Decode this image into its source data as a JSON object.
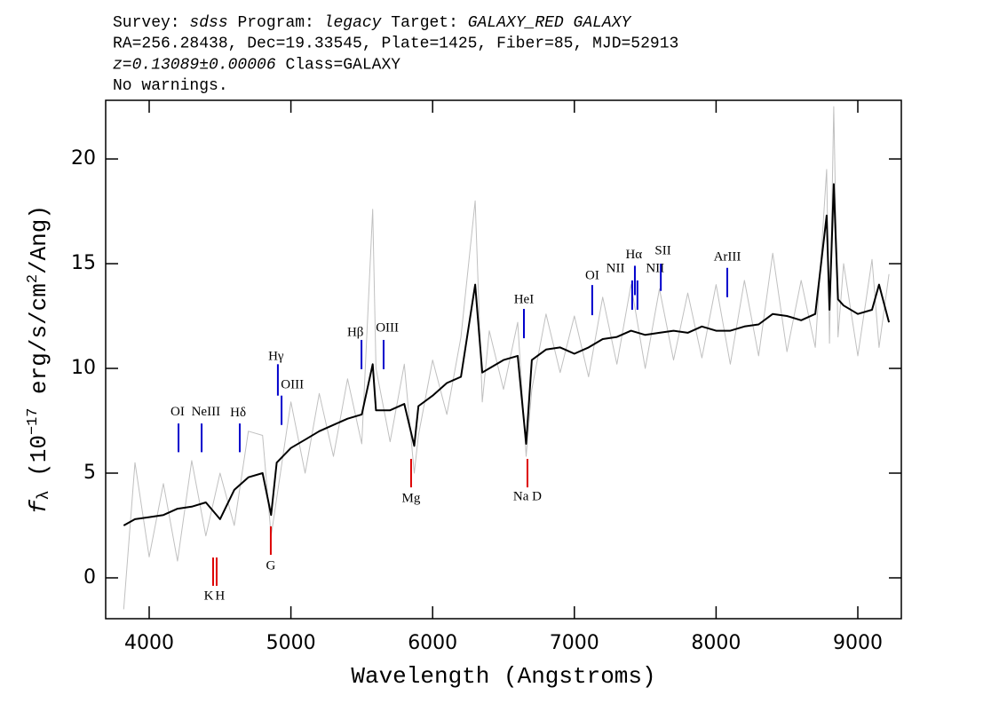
{
  "chart_data": {
    "type": "line",
    "header": [
      [
        {
          "text": "Survey: "
        },
        {
          "text": "sdss",
          "style": "italic"
        },
        {
          "text": " Program: "
        },
        {
          "text": "legacy",
          "style": "italic"
        },
        {
          "text": " Target: "
        },
        {
          "text": "GALAXY_RED GALAXY",
          "style": "italic"
        }
      ],
      [
        {
          "text": "RA=256.28438, Dec=19.33545, Plate=1425, Fiber=85, MJD=52913"
        }
      ],
      [
        {
          "text": "z=0.13089±0.00006",
          "style": "italic"
        },
        {
          "text": " Class=GALAXY"
        }
      ],
      [
        {
          "text": "No warnings."
        }
      ]
    ],
    "x_label": "Wavelength (Angstroms)",
    "y_label": [
      {
        "text": "f",
        "style": "italic"
      },
      {
        "text": "λ",
        "style": "sub"
      },
      {
        "text": " (10"
      },
      {
        "text": "−17",
        "style": "sup"
      },
      {
        "text": " erg/s/cm"
      },
      {
        "text": "2",
        "style": "sup"
      },
      {
        "text": "/Ang)"
      }
    ],
    "x": [
      3820,
      3900,
      4000,
      4100,
      4200,
      4300,
      4400,
      4500,
      4600,
      4700,
      4800,
      4860,
      4900,
      5000,
      5100,
      5200,
      5300,
      5400,
      5500,
      5577,
      5600,
      5700,
      5800,
      5870,
      5900,
      6000,
      6100,
      6200,
      6300,
      6350,
      6400,
      6500,
      6600,
      6660,
      6700,
      6800,
      6900,
      7000,
      7100,
      7200,
      7300,
      7400,
      7500,
      7600,
      7700,
      7800,
      7900,
      8000,
      8100,
      8200,
      8300,
      8400,
      8500,
      8600,
      8700,
      8780,
      8800,
      8830,
      8860,
      8900,
      9000,
      9100,
      9150,
      9220
    ],
    "series": [
      {
        "color": "#c0c0c0",
        "width": 1,
        "values": [
          -1.5,
          5.5,
          1.0,
          4.5,
          0.8,
          5.6,
          2.0,
          5.0,
          2.5,
          7.0,
          6.8,
          2.0,
          3.8,
          8.4,
          5.0,
          8.8,
          5.8,
          9.5,
          6.4,
          17.6,
          10.0,
          6.5,
          10.2,
          5.0,
          6.8,
          10.4,
          7.8,
          11.5,
          18.0,
          8.4,
          11.8,
          9.0,
          12.2,
          5.8,
          9.0,
          12.6,
          9.8,
          12.5,
          9.6,
          13.4,
          10.2,
          14.0,
          10.0,
          13.8,
          10.4,
          13.6,
          10.5,
          14.0,
          10.2,
          14.2,
          10.6,
          15.5,
          10.8,
          14.2,
          11.0,
          19.5,
          11.2,
          22.5,
          11.5,
          15.0,
          10.6,
          15.2,
          11.0,
          14.5
        ]
      },
      {
        "color": "#000000",
        "width": 2,
        "values": [
          2.5,
          2.8,
          2.9,
          3.0,
          3.3,
          3.4,
          3.6,
          2.8,
          4.2,
          4.8,
          5.0,
          3.0,
          5.5,
          6.2,
          6.6,
          7.0,
          7.3,
          7.6,
          7.8,
          10.2,
          8.0,
          8.0,
          8.3,
          6.3,
          8.2,
          8.7,
          9.3,
          9.6,
          14.0,
          9.8,
          10.0,
          10.4,
          10.6,
          6.4,
          10.4,
          10.9,
          11.0,
          10.7,
          11.0,
          11.4,
          11.5,
          11.8,
          11.6,
          11.7,
          11.8,
          11.7,
          12.0,
          11.8,
          11.8,
          12.0,
          12.1,
          12.6,
          12.5,
          12.3,
          12.6,
          17.3,
          12.8,
          18.8,
          13.3,
          13.0,
          12.6,
          12.8,
          14.0,
          12.2
        ]
      }
    ],
    "xlim": [
      3693,
      9307
    ],
    "ylim": [
      -1.95,
      22.8
    ],
    "xticks": [
      4000,
      5000,
      6000,
      7000,
      8000,
      9000
    ],
    "yticks": [
      0,
      5,
      10,
      15,
      20
    ],
    "annotations": [
      {
        "label": "OI",
        "x": 4207,
        "y_start": 6.0,
        "y_end": 7.37,
        "label_x": 4200,
        "label_y": 7.9,
        "color": "#0000cc"
      },
      {
        "label": "NeIII",
        "x": 4370,
        "y_start": 6.0,
        "y_end": 7.37,
        "label_x": 4400,
        "label_y": 7.9,
        "color": "#0000cc"
      },
      {
        "label": "Hδ",
        "x": 4639,
        "y_start": 6.0,
        "y_end": 7.37,
        "label_x": 4627,
        "label_y": 7.85,
        "color": "#0000cc"
      },
      {
        "label": "Hγ",
        "x": 4908,
        "y_start": 8.7,
        "y_end": 10.2,
        "label_x": 4895,
        "label_y": 10.55,
        "color": "#0000cc"
      },
      {
        "label": "OIII",
        "x": 4934,
        "y_start": 7.3,
        "y_end": 8.7,
        "label_x": 5010,
        "label_y": 9.2,
        "color": "#0000cc"
      },
      {
        "label": "Hβ",
        "x": 5498,
        "y_start": 9.96,
        "y_end": 11.36,
        "label_x": 5455,
        "label_y": 11.7,
        "color": "#0000cc"
      },
      {
        "label": "OIII",
        "x": 5654,
        "y_start": 9.96,
        "y_end": 11.36,
        "label_x": 5680,
        "label_y": 11.9,
        "color": "#0000cc"
      },
      {
        "label": "HeI",
        "x": 6644,
        "y_start": 11.44,
        "y_end": 12.84,
        "label_x": 6644,
        "label_y": 13.26,
        "color": "#0000cc"
      },
      {
        "label": "OI",
        "x": 7126,
        "y_start": 12.54,
        "y_end": 13.98,
        "label_x": 7126,
        "label_y": 14.4,
        "color": "#0000cc"
      },
      {
        "label": "NII",
        "x": 7408,
        "y_start": 12.8,
        "y_end": 14.2,
        "label_x": 7290,
        "label_y": 14.75,
        "color": "#0000cc"
      },
      {
        "label": "Hα",
        "x": 7427,
        "y_start": 13.5,
        "y_end": 14.9,
        "label_x": 7420,
        "label_y": 15.4,
        "color": "#0000cc"
      },
      {
        "label": "NII",
        "x": 7445,
        "y_start": 12.8,
        "y_end": 14.2,
        "label_x": 7570,
        "label_y": 14.75,
        "color": "#0000cc"
      },
      {
        "label": "SII",
        "x": 7610,
        "y_start": 13.7,
        "y_end": 15.0,
        "label_x": 7625,
        "label_y": 15.6,
        "color": "#0000cc"
      },
      {
        "label": "ArIII",
        "x": 8079,
        "y_start": 13.4,
        "y_end": 14.8,
        "label_x": 8079,
        "label_y": 15.3,
        "color": "#0000cc"
      },
      {
        "label": "K",
        "x": 4451,
        "y_start": -0.38,
        "y_end": 0.97,
        "label_x": 4420,
        "label_y": -0.9,
        "color": "#dd0000"
      },
      {
        "label": "H",
        "x": 4476,
        "y_start": -0.38,
        "y_end": 0.97,
        "label_x": 4500,
        "label_y": -0.9,
        "color": "#dd0000"
      },
      {
        "label": "G",
        "x": 4858,
        "y_start": 1.1,
        "y_end": 2.46,
        "label_x": 4858,
        "label_y": 0.55,
        "color": "#dd0000"
      },
      {
        "label": "Mg",
        "x": 5848,
        "y_start": 4.32,
        "y_end": 5.68,
        "label_x": 5848,
        "label_y": 3.77,
        "color": "#dd0000"
      },
      {
        "label": "Na D",
        "x": 6669,
        "y_start": 4.32,
        "y_end": 5.68,
        "label_x": 6669,
        "label_y": 3.86,
        "color": "#dd0000"
      }
    ]
  }
}
